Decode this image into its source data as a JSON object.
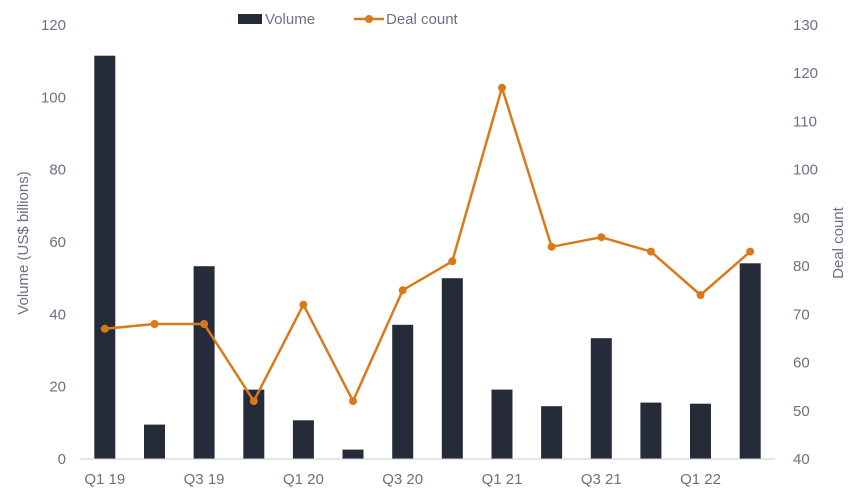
{
  "chart_data": {
    "type": "bar+line",
    "categories": [
      "Q1 19",
      "Q2 19",
      "Q3 19",
      "Q4 19",
      "Q1 20",
      "Q2 20",
      "Q3 20",
      "Q4 20",
      "Q1 21",
      "Q2 21",
      "Q3 21",
      "Q4 21",
      "Q1 22",
      "Q2 22"
    ],
    "x_tick_labels": [
      "Q1 19",
      "Q3 19",
      "Q1 20",
      "Q3 20",
      "Q1 21",
      "Q3 21",
      "Q1 22"
    ],
    "series": [
      {
        "name": "Volume",
        "type": "bar",
        "axis": "left",
        "color": "#262b3a",
        "values": [
          111.5,
          9.5,
          53.3,
          19.2,
          10.7,
          2.6,
          37.1,
          50.0,
          19.2,
          14.6,
          33.4,
          15.6,
          15.3,
          54.1
        ]
      },
      {
        "name": "Deal count",
        "type": "line",
        "axis": "right",
        "color": "#d97a1a",
        "values": [
          67,
          68,
          68,
          52,
          72,
          52,
          75,
          81,
          117,
          84,
          86,
          83,
          74,
          83
        ]
      }
    ],
    "y_left": {
      "label": "Volume (US$ billions)",
      "lim": [
        0,
        120
      ],
      "ticks": [
        0,
        20,
        40,
        60,
        80,
        100,
        120
      ]
    },
    "y_right": {
      "label": "Deal count",
      "lim": [
        40,
        130
      ],
      "ticks": [
        40,
        50,
        60,
        70,
        80,
        90,
        100,
        110,
        120,
        130
      ]
    },
    "legend": {
      "placement": "top-center",
      "entries": [
        "Volume",
        "Deal count"
      ]
    },
    "grid": false
  }
}
